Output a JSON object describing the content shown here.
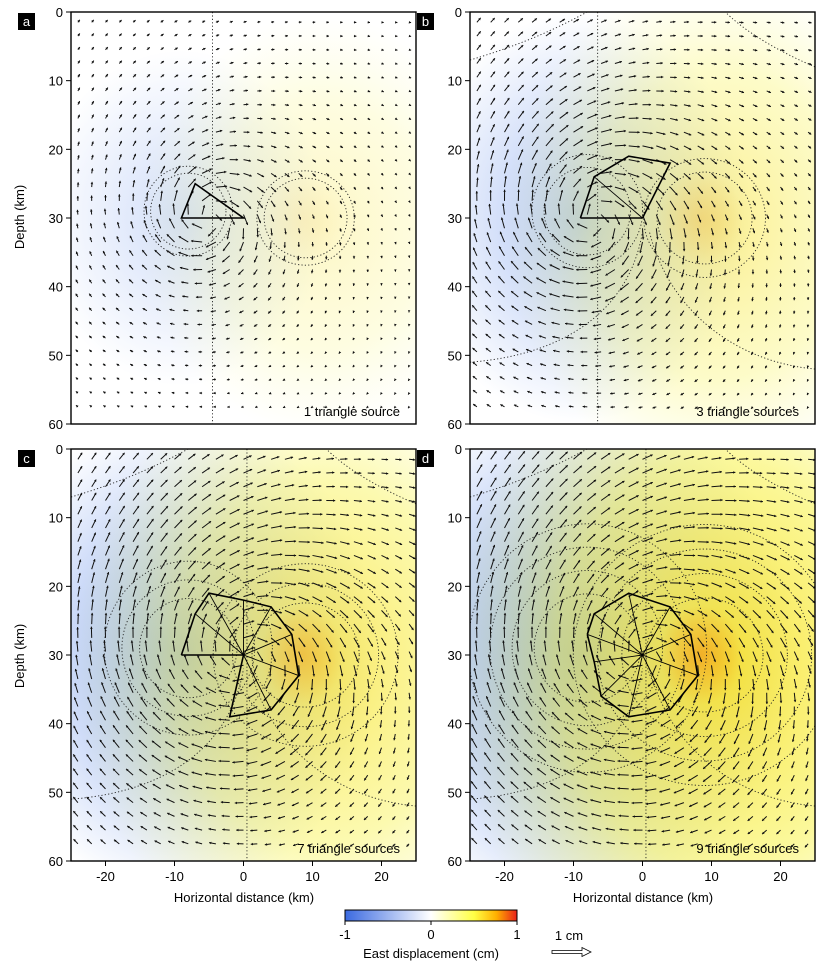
{
  "chart_data": {
    "type": "vector-field-map",
    "panels": [
      {
        "letter": "a",
        "caption": "1 triangle source",
        "n_sources": 1,
        "strength": 0.3,
        "source_outline": [
          [
            -9,
            30
          ],
          [
            -7,
            25
          ],
          [
            0,
            30
          ]
        ],
        "source_center": [
          -5,
          28.5
        ],
        "source_spokes": []
      },
      {
        "letter": "b",
        "caption": "3 triangle sources",
        "n_sources": 3,
        "strength": 0.55,
        "source_outline": [
          [
            -9,
            30
          ],
          [
            -7,
            24
          ],
          [
            -2,
            21
          ],
          [
            4,
            22
          ],
          [
            0,
            30
          ]
        ],
        "source_center": [
          -7,
          24
        ],
        "source_spokes": [
          [
            -2,
            21
          ],
          [
            0,
            30
          ]
        ]
      },
      {
        "letter": "c",
        "caption": "7 triangle sources",
        "n_sources": 7,
        "strength": 0.8,
        "source_outline": [
          [
            -9,
            30
          ],
          [
            -7,
            24
          ],
          [
            -5,
            21
          ],
          [
            0,
            22
          ],
          [
            4,
            23
          ],
          [
            7,
            27
          ],
          [
            8,
            33
          ],
          [
            4,
            38
          ],
          [
            -2,
            39
          ],
          [
            0,
            30
          ]
        ],
        "source_center": [
          0,
          30
        ],
        "source_spokes": [
          [
            -7,
            24
          ],
          [
            -5,
            21
          ],
          [
            0,
            22
          ],
          [
            4,
            23
          ],
          [
            7,
            27
          ],
          [
            8,
            33
          ],
          [
            4,
            38
          ],
          [
            -2,
            39
          ],
          [
            -9,
            30
          ]
        ]
      },
      {
        "letter": "d",
        "caption": "9 triangle sources",
        "n_sources": 9,
        "strength": 1.0,
        "source_outline": [
          [
            -8,
            27
          ],
          [
            -7,
            24
          ],
          [
            -2,
            21
          ],
          [
            4,
            23
          ],
          [
            7,
            27
          ],
          [
            8,
            33
          ],
          [
            4,
            38
          ],
          [
            -2,
            39
          ],
          [
            -6,
            36
          ],
          [
            -7,
            31
          ],
          [
            -8,
            27
          ]
        ],
        "source_center": [
          0,
          30
        ],
        "source_spokes": [
          [
            -8,
            27
          ],
          [
            -7,
            24
          ],
          [
            -2,
            21
          ],
          [
            4,
            23
          ],
          [
            7,
            27
          ],
          [
            8,
            33
          ],
          [
            4,
            38
          ],
          [
            -2,
            39
          ],
          [
            -6,
            36
          ],
          [
            -7,
            31
          ]
        ]
      }
    ],
    "x_axis": {
      "label": "Horizontal distance (km)",
      "range": [
        -25,
        25
      ],
      "ticks": [
        -20,
        -10,
        0,
        10,
        20
      ]
    },
    "y_axis": {
      "label": "Depth (km)",
      "range": [
        0,
        60
      ],
      "ticks": [
        0,
        10,
        20,
        30,
        40,
        50,
        60
      ],
      "inverted": true
    },
    "colorbar": {
      "label": "East displacement (cm)",
      "min": -1,
      "max": 1,
      "ticks": [
        -1,
        0,
        1
      ],
      "colors": [
        "#3b6ae0",
        "#ffffff",
        "#ffff45",
        "#ffb000",
        "#e8201a"
      ]
    },
    "scale_arrow": {
      "label": "1 cm"
    }
  }
}
